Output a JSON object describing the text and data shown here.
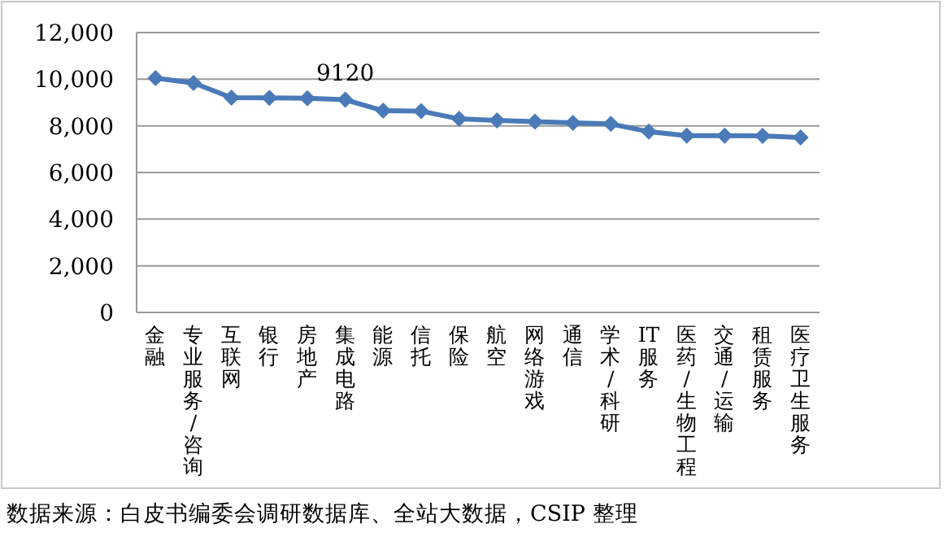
{
  "chart_data": {
    "type": "line",
    "categories": [
      "金融",
      "专业服务/咨询",
      "互联网",
      "银行",
      "房地产",
      "集成电路",
      "能源",
      "信托",
      "保险",
      "航空",
      "网络游戏",
      "通信",
      "学术/科研",
      "IT服务",
      "医药/生物工程",
      "交通/运输",
      "租赁服务",
      "医疗卫生服务"
    ],
    "series": [
      {
        "color": "#4a7ab8",
        "values": [
          10050,
          9840,
          9210,
          9200,
          9180,
          9120,
          8650,
          8630,
          8300,
          8230,
          8180,
          8130,
          8080,
          7750,
          7580,
          7580,
          7570,
          7500
        ],
        "value_labels": [
          null,
          null,
          null,
          null,
          null,
          "9120",
          null,
          null,
          null,
          null,
          null,
          null,
          null,
          null,
          null,
          null,
          null,
          null
        ]
      }
    ],
    "ylim": [
      0,
      12000
    ],
    "yticks": [
      0,
      {
        "value": 2000,
        "label": "2,000"
      },
      {
        "value": 4000,
        "label": "4,000"
      },
      {
        "value": 6000,
        "label": "6,000"
      },
      {
        "value": 8000,
        "label": "8,000"
      },
      {
        "value": 10000,
        "label": "10,000"
      },
      {
        "value": 12000,
        "label": "12,000"
      }
    ],
    "grid": "y",
    "marker": "diamond",
    "line_style": "solid",
    "annotations": [
      "数据来源：白皮书编委会调研数据库、全站大数据，CSIP 整理"
    ]
  }
}
